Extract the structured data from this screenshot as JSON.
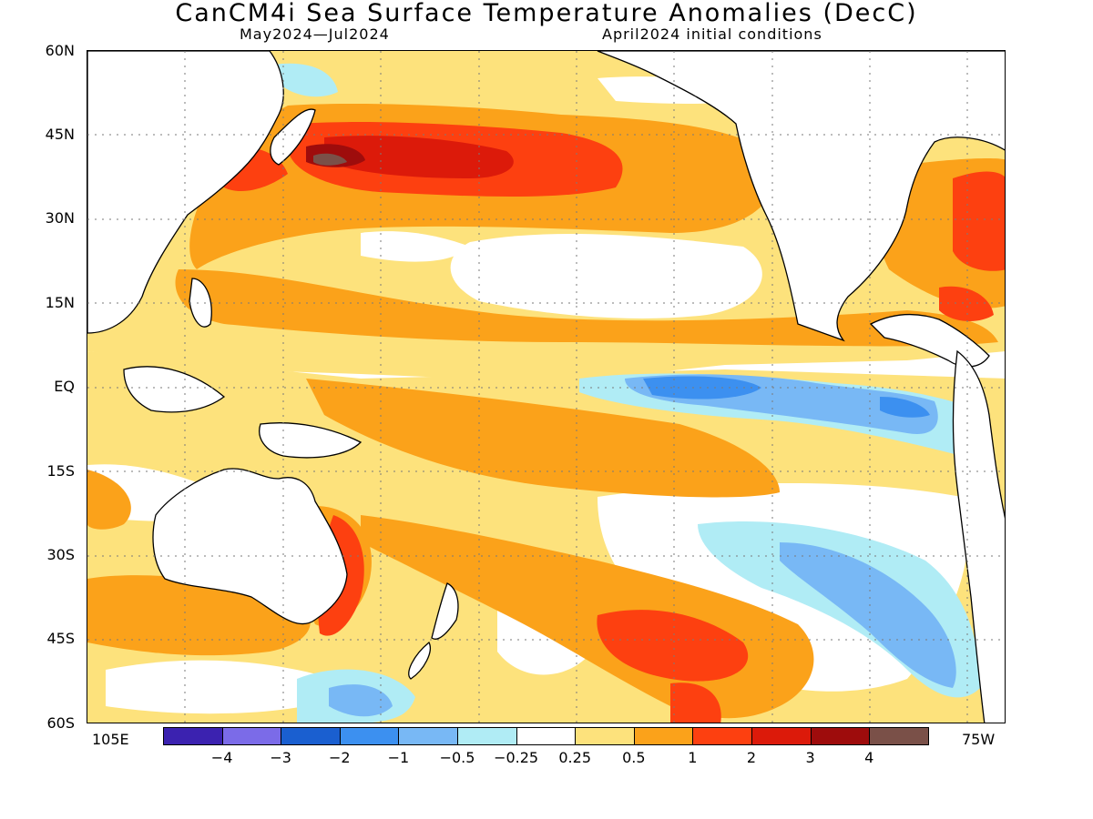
{
  "header": {
    "title": "CanCM4i Sea Surface Temperature Anomalies (DecC)",
    "subtitle_left": "May2024—Jul2024",
    "subtitle_right": "April2024 initial conditions"
  },
  "axes": {
    "lat_labels": [
      "60N",
      "45N",
      "30N",
      "15N",
      "EQ",
      "15S",
      "30S",
      "45S",
      "60S"
    ],
    "lon_left": "105E",
    "lon_right": "75W"
  },
  "legend": {
    "colors": [
      "#3b22b0",
      "#7b6be8",
      "#1a5fd0",
      "#3c90f0",
      "#78b8f5",
      "#b0ecf5",
      "#ffffff",
      "#fde27c",
      "#fba21a",
      "#fd4010",
      "#dc1a0a",
      "#9e0c0c",
      "#7a5048"
    ],
    "labels": [
      "−4",
      "−3",
      "−2",
      "−1",
      "−0.5",
      "−0.25",
      "0.25",
      "0.5",
      "1",
      "2",
      "3",
      "4"
    ]
  }
}
